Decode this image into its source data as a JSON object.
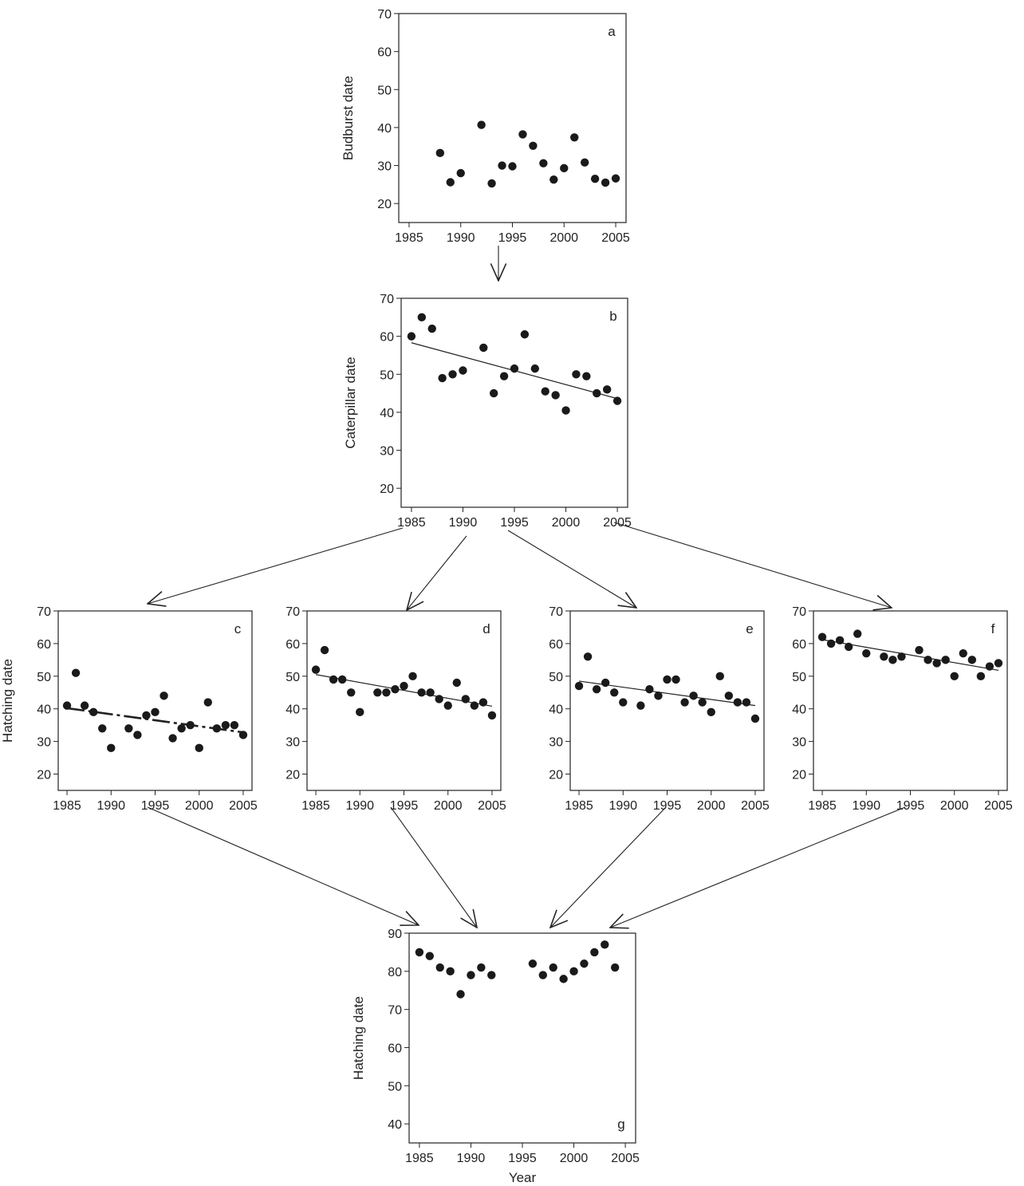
{
  "figure": {
    "xlabel": "Year",
    "arrows": "flow from panel a to b, b to c/d/e/f, c/d/e/f to g"
  },
  "chart_data": [
    {
      "id": "a",
      "type": "scatter",
      "panel_label": "a",
      "ylabel": "Budburst date",
      "xlabel": "",
      "xlim": [
        1984,
        2006
      ],
      "ylim": [
        15,
        70
      ],
      "xticks": [
        1985,
        1990,
        1995,
        2000,
        2005
      ],
      "yticks": [
        20,
        30,
        40,
        50,
        60,
        70
      ],
      "points": [
        [
          1988,
          33.3
        ],
        [
          1989,
          25.6
        ],
        [
          1990,
          28
        ],
        [
          1992,
          40.7
        ],
        [
          1993,
          25.3
        ],
        [
          1994,
          30
        ],
        [
          1995,
          29.8
        ],
        [
          1996,
          38.2
        ],
        [
          1997,
          35.2
        ],
        [
          1998,
          30.6
        ],
        [
          1999,
          26.3
        ],
        [
          2000,
          29.3
        ],
        [
          2001,
          37.4
        ],
        [
          2002,
          30.8
        ],
        [
          2003,
          26.5
        ],
        [
          2004,
          25.5
        ],
        [
          2005,
          26.6
        ]
      ],
      "trend": null,
      "trend_style": "none"
    },
    {
      "id": "b",
      "type": "scatter",
      "panel_label": "b",
      "ylabel": "Caterpillar date",
      "xlabel": "",
      "xlim": [
        1984,
        2006
      ],
      "ylim": [
        15,
        70
      ],
      "xticks": [
        1985,
        1990,
        1995,
        2000,
        2005
      ],
      "yticks": [
        20,
        30,
        40,
        50,
        60,
        70
      ],
      "points": [
        [
          1985,
          60
        ],
        [
          1986,
          65
        ],
        [
          1987,
          62
        ],
        [
          1988,
          49
        ],
        [
          1989,
          50
        ],
        [
          1990,
          51
        ],
        [
          1992,
          57
        ],
        [
          1993,
          45
        ],
        [
          1994,
          49.5
        ],
        [
          1995,
          51.5
        ],
        [
          1996,
          60.5
        ],
        [
          1997,
          51.5
        ],
        [
          1998,
          45.5
        ],
        [
          1999,
          44.5
        ],
        [
          2000,
          40.5
        ],
        [
          2001,
          50
        ],
        [
          2002,
          49.5
        ],
        [
          2003,
          45
        ],
        [
          2004,
          46
        ],
        [
          2005,
          43
        ]
      ],
      "trend": [
        [
          1985,
          58.3
        ],
        [
          2005,
          43.6
        ]
      ],
      "trend_style": "solid"
    },
    {
      "id": "c",
      "type": "scatter",
      "panel_label": "c",
      "ylabel": "Hatching date",
      "xlabel": "",
      "xlim": [
        1984,
        2006
      ],
      "ylim": [
        15,
        70
      ],
      "xticks": [
        1985,
        1990,
        1995,
        2000,
        2005
      ],
      "yticks": [
        20,
        30,
        40,
        50,
        60,
        70
      ],
      "points": [
        [
          1985,
          41
        ],
        [
          1986,
          51
        ],
        [
          1987,
          41
        ],
        [
          1988,
          39
        ],
        [
          1989,
          34
        ],
        [
          1990,
          28
        ],
        [
          1992,
          34
        ],
        [
          1993,
          32
        ],
        [
          1994,
          38
        ],
        [
          1995,
          39
        ],
        [
          1996,
          44
        ],
        [
          1997,
          31
        ],
        [
          1998,
          34
        ],
        [
          1999,
          35
        ],
        [
          2000,
          28
        ],
        [
          2001,
          42
        ],
        [
          2002,
          34
        ],
        [
          2003,
          35
        ],
        [
          2004,
          35
        ],
        [
          2005,
          32
        ]
      ],
      "trend": [
        [
          1985,
          40.2
        ],
        [
          2005,
          32.8
        ]
      ],
      "trend_style": "dashed"
    },
    {
      "id": "d",
      "type": "scatter",
      "panel_label": "d",
      "ylabel": "",
      "xlabel": "",
      "xlim": [
        1984,
        2006
      ],
      "ylim": [
        15,
        70
      ],
      "xticks": [
        1985,
        1990,
        1995,
        2000,
        2005
      ],
      "yticks": [
        20,
        30,
        40,
        50,
        60,
        70
      ],
      "points": [
        [
          1985,
          52
        ],
        [
          1986,
          58
        ],
        [
          1987,
          49
        ],
        [
          1988,
          49
        ],
        [
          1989,
          45
        ],
        [
          1990,
          39
        ],
        [
          1992,
          45
        ],
        [
          1993,
          45
        ],
        [
          1994,
          46
        ],
        [
          1995,
          47
        ],
        [
          1996,
          50
        ],
        [
          1997,
          45
        ],
        [
          1998,
          45
        ],
        [
          1999,
          43
        ],
        [
          2000,
          41
        ],
        [
          2001,
          48
        ],
        [
          2002,
          43
        ],
        [
          2003,
          41
        ],
        [
          2004,
          42
        ],
        [
          2005,
          38
        ]
      ],
      "trend": [
        [
          1985,
          50.5
        ],
        [
          2005,
          40.8
        ]
      ],
      "trend_style": "solid"
    },
    {
      "id": "e",
      "type": "scatter",
      "panel_label": "e",
      "ylabel": "",
      "xlabel": "",
      "xlim": [
        1984,
        2006
      ],
      "ylim": [
        15,
        70
      ],
      "xticks": [
        1985,
        1990,
        1995,
        2000,
        2005
      ],
      "yticks": [
        20,
        30,
        40,
        50,
        60,
        70
      ],
      "points": [
        [
          1985,
          47
        ],
        [
          1986,
          56
        ],
        [
          1987,
          46
        ],
        [
          1988,
          48
        ],
        [
          1989,
          45
        ],
        [
          1990,
          42
        ],
        [
          1992,
          41
        ],
        [
          1993,
          46
        ],
        [
          1994,
          44
        ],
        [
          1995,
          49
        ],
        [
          1996,
          49
        ],
        [
          1997,
          42
        ],
        [
          1998,
          44
        ],
        [
          1999,
          42
        ],
        [
          2000,
          39
        ],
        [
          2001,
          50
        ],
        [
          2002,
          44
        ],
        [
          2003,
          42
        ],
        [
          2004,
          42
        ],
        [
          2005,
          37
        ]
      ],
      "trend": [
        [
          1985,
          48.5
        ],
        [
          2005,
          41
        ]
      ],
      "trend_style": "solid"
    },
    {
      "id": "f",
      "type": "scatter",
      "panel_label": "f",
      "ylabel": "",
      "xlabel": "",
      "xlim": [
        1984,
        2006
      ],
      "ylim": [
        15,
        70
      ],
      "xticks": [
        1985,
        1990,
        1995,
        2000,
        2005
      ],
      "yticks": [
        20,
        30,
        40,
        50,
        60,
        70
      ],
      "points": [
        [
          1985,
          62
        ],
        [
          1986,
          60
        ],
        [
          1987,
          61
        ],
        [
          1988,
          59
        ],
        [
          1989,
          63
        ],
        [
          1990,
          57
        ],
        [
          1992,
          56
        ],
        [
          1993,
          55
        ],
        [
          1994,
          56
        ],
        [
          1996,
          58
        ],
        [
          1997,
          55
        ],
        [
          1998,
          54
        ],
        [
          1999,
          55
        ],
        [
          2000,
          50
        ],
        [
          2001,
          57
        ],
        [
          2002,
          55
        ],
        [
          2003,
          50
        ],
        [
          2004,
          53
        ],
        [
          2005,
          54
        ]
      ],
      "trend": [
        [
          1985,
          61.2
        ],
        [
          2005,
          51.8
        ]
      ],
      "trend_style": "solid"
    },
    {
      "id": "g",
      "type": "scatter",
      "panel_label": "g",
      "ylabel": "Hatching date",
      "xlabel": "Year",
      "xlim": [
        1984,
        2006
      ],
      "ylim": [
        35,
        90
      ],
      "xticks": [
        1985,
        1990,
        1995,
        2000,
        2005
      ],
      "yticks": [
        40,
        50,
        60,
        70,
        80,
        90
      ],
      "points": [
        [
          1985,
          85
        ],
        [
          1986,
          84
        ],
        [
          1987,
          81
        ],
        [
          1988,
          80
        ],
        [
          1989,
          74
        ],
        [
          1990,
          79
        ],
        [
          1991,
          81
        ],
        [
          1992,
          79
        ],
        [
          1996,
          82
        ],
        [
          1997,
          79
        ],
        [
          1998,
          81
        ],
        [
          1999,
          78
        ],
        [
          2000,
          80
        ],
        [
          2001,
          82
        ],
        [
          2002,
          85
        ],
        [
          2003,
          87
        ],
        [
          2004,
          81
        ]
      ],
      "trend": null,
      "trend_style": "none"
    }
  ]
}
